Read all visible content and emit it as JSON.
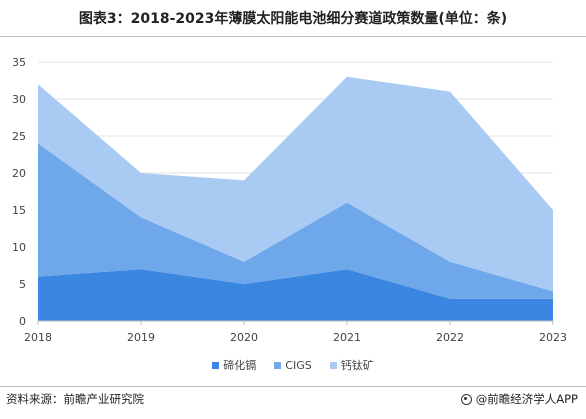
{
  "title": "图表3：2018-2023年薄膜太阳能电池细分赛道政策数量(单位：条)",
  "footer": {
    "source": "资料来源：前瞻产业研究院",
    "brand": "@前瞻经济学人APP",
    "brand_icon": "circle-logo-icon"
  },
  "chart_data": {
    "type": "area",
    "stacked": true,
    "title": "图表3：2018-2023年薄膜太阳能电池细分赛道政策数量(单位：条)",
    "x": [
      "2018",
      "2019",
      "2020",
      "2021",
      "2022",
      "2023"
    ],
    "ylim": [
      0,
      35
    ],
    "yticks": [
      0,
      5,
      10,
      15,
      20,
      25,
      30,
      35
    ],
    "grid": true,
    "legend": "bottom",
    "series": [
      {
        "name": "碲化镉",
        "color": "#3a86e0",
        "values": [
          6,
          7,
          5,
          7,
          3,
          3
        ]
      },
      {
        "name": "CIGS",
        "color": "#6ea7ea",
        "values": [
          18,
          7,
          3,
          9,
          5,
          1
        ]
      },
      {
        "name": "钙钛矿",
        "color": "#a9cbf3",
        "values": [
          8,
          6,
          11,
          17,
          23,
          11
        ]
      }
    ]
  }
}
